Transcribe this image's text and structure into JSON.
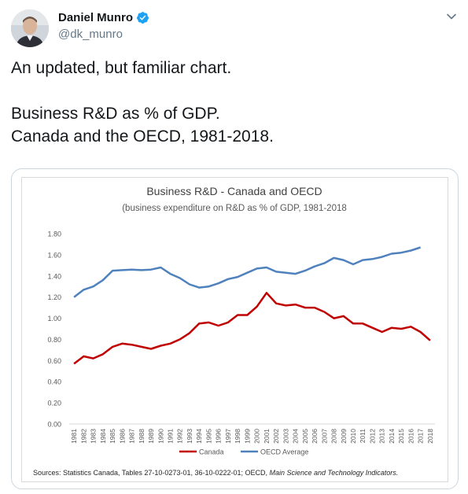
{
  "tweet": {
    "display_name": "Daniel Munro",
    "handle": "@dk_munro",
    "text": "An updated, but familiar chart.\n\nBusiness R&D as % of GDP.\nCanada and the OECD, 1981-2018."
  },
  "icons": {
    "avatar": "profile-photo",
    "verified": "verified-badge-icon",
    "menu": "chevron-down-icon"
  },
  "colors": {
    "verified": "#1da1f2",
    "canada": "#c00000",
    "oecd": "#4f81bd"
  },
  "chart_data": {
    "type": "line",
    "title": "Business R&D - Canada and OECD",
    "subtitle": "(business expenditure on R&D as % of GDP, 1981-2018",
    "xlabel": "",
    "ylabel": "",
    "ylim": [
      0,
      1.8
    ],
    "ytick_labels": [
      "0.00",
      "0.20",
      "0.40",
      "0.60",
      "0.80",
      "1.00",
      "1.20",
      "1.40",
      "1.60",
      "1.80"
    ],
    "x": [
      "1981",
      "1982",
      "1983",
      "1984",
      "1985",
      "1986",
      "1987",
      "1988",
      "1989",
      "1990",
      "1991",
      "1992",
      "1993",
      "1994",
      "1995",
      "1996",
      "1997",
      "1998",
      "1999",
      "2000",
      "2001",
      "2002",
      "2003",
      "2004",
      "2005",
      "2006",
      "2007",
      "2008",
      "2009",
      "2010",
      "2011",
      "2012",
      "2013",
      "2014",
      "2015",
      "2016",
      "2017",
      "2018"
    ],
    "series": [
      {
        "name": "Canada",
        "color": "#c00000",
        "values": [
          0.57,
          0.64,
          0.62,
          0.66,
          0.73,
          0.76,
          0.75,
          0.73,
          0.71,
          0.74,
          0.76,
          0.8,
          0.86,
          0.95,
          0.96,
          0.93,
          0.96,
          1.03,
          1.03,
          1.11,
          1.24,
          1.14,
          1.12,
          1.13,
          1.1,
          1.1,
          1.06,
          1.0,
          1.02,
          0.95,
          0.95,
          0.91,
          0.87,
          0.91,
          0.9,
          0.92,
          0.87,
          0.79
        ]
      },
      {
        "name": "OECD Average",
        "color": "#4f81bd",
        "values": [
          1.2,
          1.27,
          1.3,
          1.36,
          1.45,
          1.455,
          1.46,
          1.455,
          1.46,
          1.48,
          1.42,
          1.38,
          1.32,
          1.29,
          1.3,
          1.33,
          1.37,
          1.39,
          1.43,
          1.47,
          1.48,
          1.44,
          1.43,
          1.42,
          1.45,
          1.49,
          1.52,
          1.57,
          1.55,
          1.51,
          1.55,
          1.56,
          1.58,
          1.61,
          1.62,
          1.64,
          1.67,
          null
        ]
      }
    ],
    "legend_position": "bottom",
    "grid": false,
    "source_plain": "Sources: Statistics Canada, Tables 27-10-0273-01, 36-10-0222-01; OECD, ",
    "source_italic": "Main Science and Technology Indicators."
  }
}
